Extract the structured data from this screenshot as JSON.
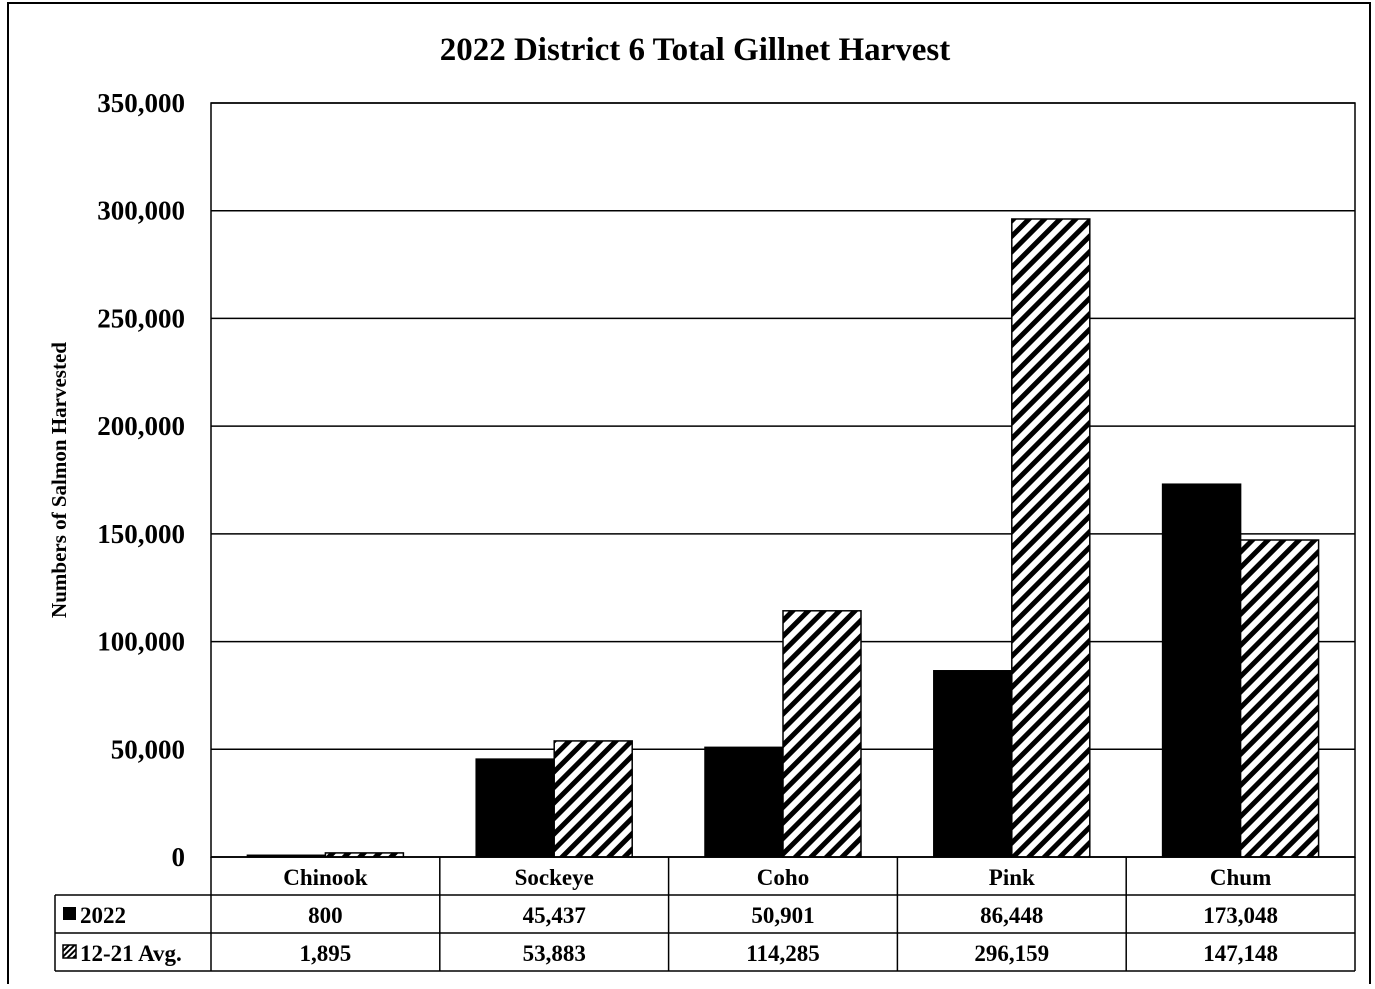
{
  "chart_data": {
    "type": "bar",
    "title": "2022 District 6 Total Gillnet Harvest",
    "xlabel": "",
    "ylabel": "Numbers of Salmon Harvested",
    "ylim": [
      0,
      350000
    ],
    "yticks": [
      0,
      50000,
      100000,
      150000,
      200000,
      250000,
      300000,
      350000
    ],
    "ytick_labels": [
      "0",
      "50,000",
      "100,000",
      "150,000",
      "200,000",
      "250,000",
      "300,000",
      "350,000"
    ],
    "grid": true,
    "legend": "data-table-left",
    "categories": [
      "Chinook",
      "Sockeye",
      "Coho",
      "Pink",
      "Chum"
    ],
    "series": [
      {
        "name": "2022",
        "values": [
          800,
          45437,
          50901,
          86448,
          173048
        ],
        "labels": [
          "800",
          "45,437",
          "50,901",
          "86,448",
          "173,048"
        ],
        "fill": "solid-black"
      },
      {
        "name": "12-21 Avg.",
        "values": [
          1895,
          53883,
          114285,
          296159,
          147148
        ],
        "labels": [
          "1,895",
          "53,883",
          "114,285",
          "296,159",
          "147,148"
        ],
        "fill": "diagonal-hatch"
      }
    ]
  },
  "colors": {
    "bar_2022": "#000000",
    "hatch": "#000000",
    "background": "#ffffff"
  }
}
